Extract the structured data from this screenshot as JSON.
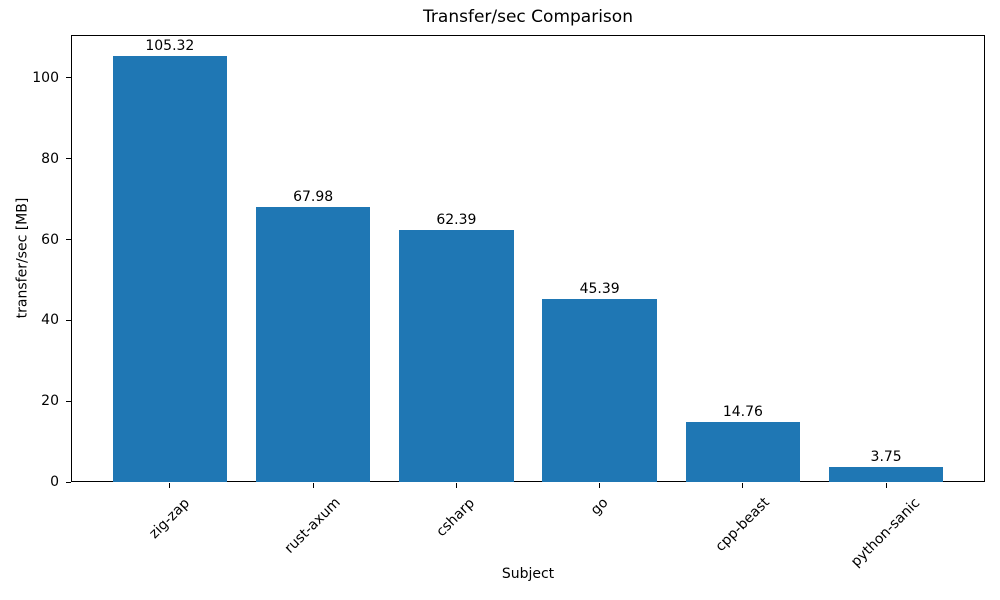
{
  "chart_data": {
    "type": "bar",
    "title": "Transfer/sec Comparison",
    "xlabel": "Subject",
    "ylabel": "transfer/sec [MB]",
    "categories": [
      "zig-zap",
      "rust-axum",
      "csharp",
      "go",
      "cpp-beast",
      "python-sanic"
    ],
    "values": [
      105.32,
      67.98,
      62.39,
      45.39,
      14.76,
      3.75
    ],
    "bar_labels": [
      "105.32",
      "67.98",
      "62.39",
      "45.39",
      "14.76",
      "3.75"
    ],
    "yticks": [
      0,
      20,
      40,
      60,
      80,
      100
    ],
    "ylim": [
      0,
      110.6
    ],
    "bar_color": "#1f77b4",
    "axis_color": "#000000",
    "text_color": "#000000",
    "background_color": "#ffffff",
    "grid": false,
    "legend": false,
    "xtick_rotation_deg": 45
  }
}
